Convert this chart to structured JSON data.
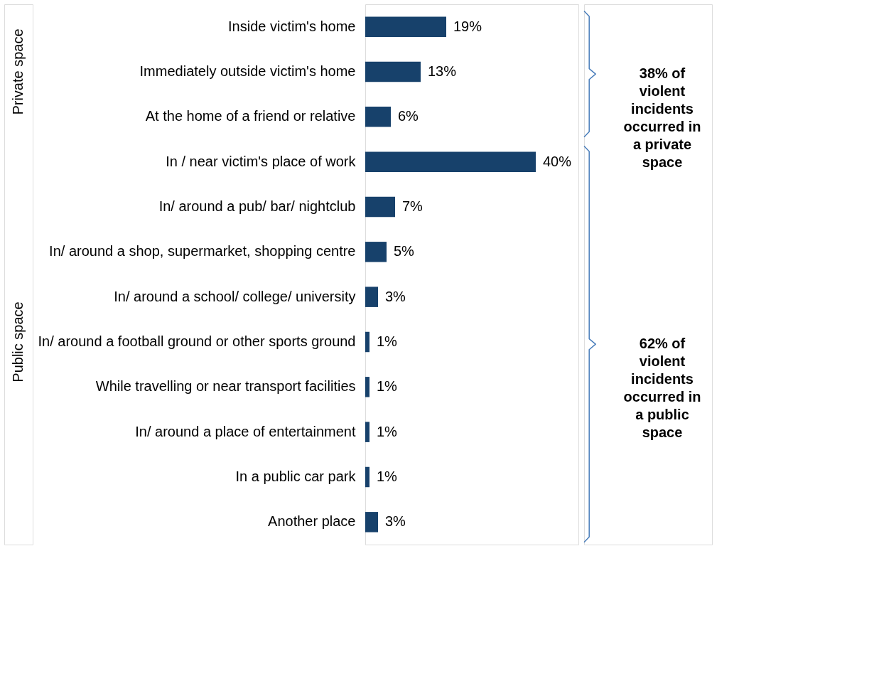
{
  "chart_data": {
    "type": "bar",
    "orientation": "horizontal",
    "categories": [
      "Inside victim's home",
      "Immediately outside victim's home",
      "At the home of a friend or relative",
      "In / near victim's place of work",
      "In/ around a pub/ bar/ nightclub",
      "In/ around a shop, supermarket, shopping centre",
      "In/ around a school/ college/ university",
      "In/ around a football ground or other sports ground",
      "While travelling or near transport facilities",
      "In/ around a place of entertainment",
      "In a public car park",
      "Another place"
    ],
    "values": [
      19,
      13,
      6,
      40,
      7,
      5,
      3,
      1,
      1,
      1,
      1,
      3
    ],
    "color": "#17416b",
    "value_labels": [
      "19%",
      "13%",
      "6%",
      "40%",
      "7%",
      "5%",
      "3%",
      "1%",
      "1%",
      "1%",
      "1%",
      "3%"
    ],
    "annotations": [
      "Private space",
      "Public space",
      "38% of violent incidents occurred in a private space",
      "62% of violent incidents occurred in a public space"
    ],
    "grid": false
  }
}
